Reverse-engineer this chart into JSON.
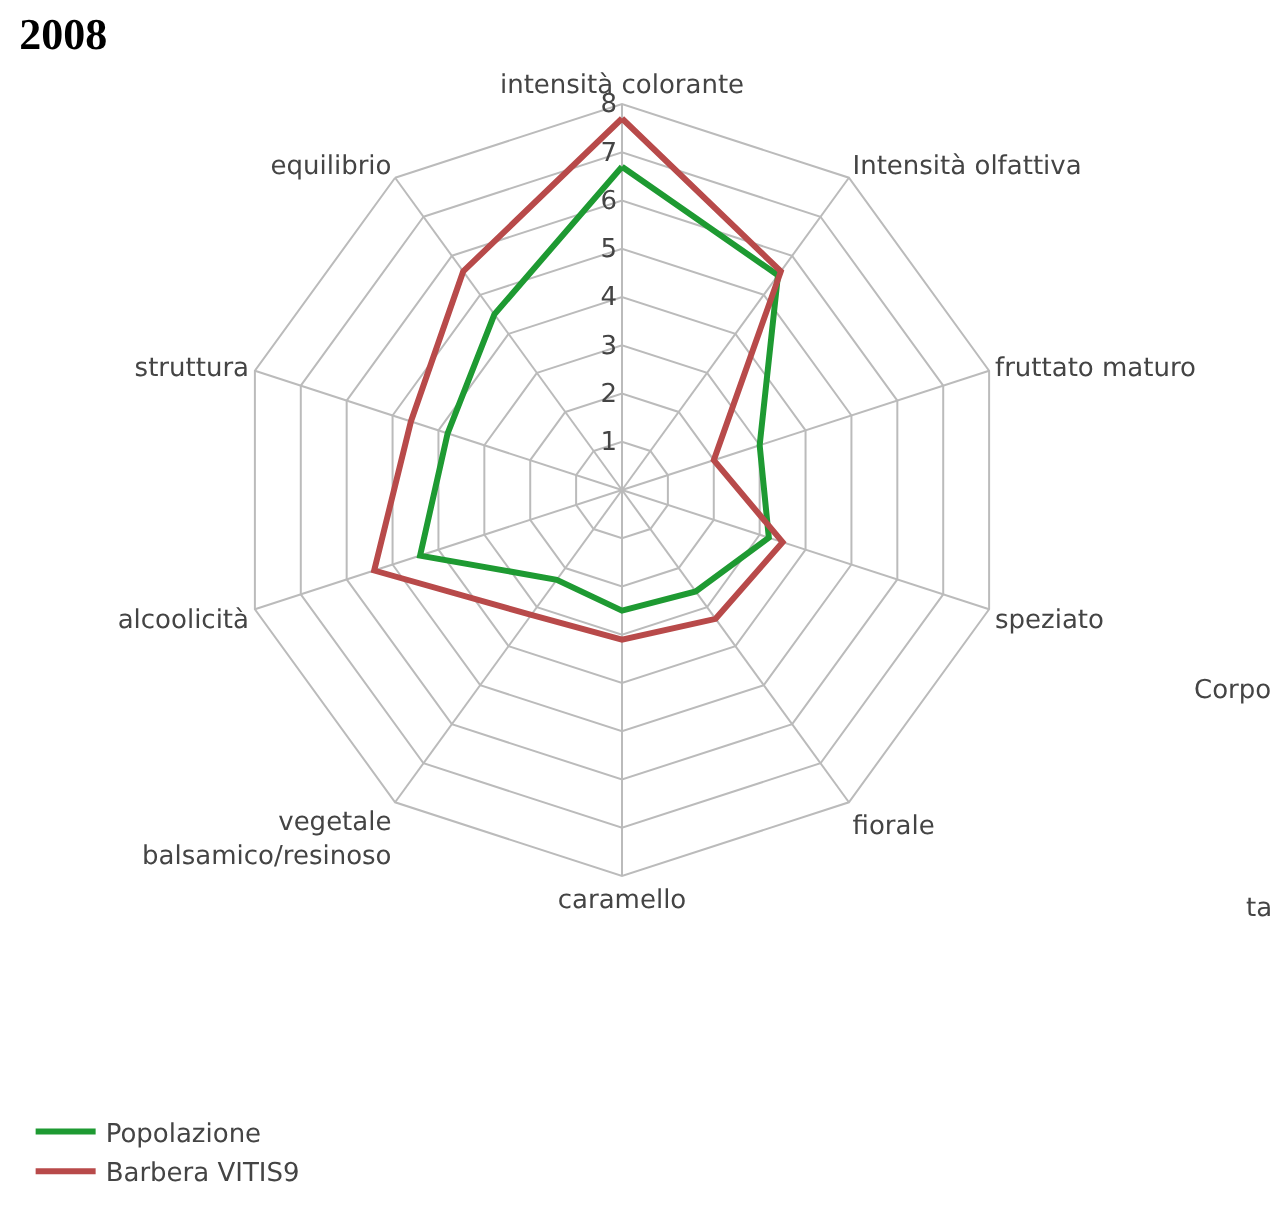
{
  "chart_data": {
    "type": "radar",
    "title": "2008",
    "categories": [
      "intensità colorante",
      "Intensità olfattiva",
      "fruttato maturo",
      "speziato",
      "fiorale",
      "caramello",
      "vegetale balsamico/resinoso",
      "alcoolicità",
      "struttura",
      "equilibrio"
    ],
    "series": [
      {
        "name": "Popolazione",
        "color": "#1e9a32",
        "values": [
          6.7,
          5.5,
          3.0,
          3.2,
          2.6,
          2.5,
          2.3,
          4.4,
          3.8,
          4.5
        ]
      },
      {
        "name": "Barbera VITIS9",
        "color": "#b84a4a",
        "values": [
          7.7,
          5.6,
          2.0,
          3.5,
          3.3,
          3.1,
          3.2,
          5.4,
          4.6,
          5.6
        ]
      }
    ],
    "ylim": [
      0,
      8
    ],
    "yticks": [
      1,
      2,
      3,
      4,
      5,
      6,
      7,
      8
    ],
    "grid": true,
    "legend": "bottom left",
    "annotations": [
      "Corpo",
      "ta"
    ]
  }
}
